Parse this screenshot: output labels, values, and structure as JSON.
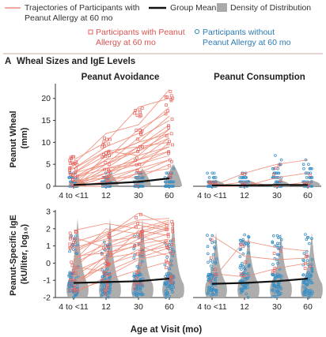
{
  "legend": {
    "trajectories": "Trajectories of Participants with",
    "trajectories_2": "Peanut Allergy at 60 mo",
    "group_mean": "Group Mean",
    "density": "Density of Distribution",
    "with_allergy": "Participants with Peanut",
    "with_allergy_2": "Allergy at 60 mo",
    "without_allergy": "Participants without",
    "without_allergy_2": "Peanut Allergy at 60 mo"
  },
  "section": {
    "letter": "A",
    "title": "Wheal Sizes and IgE Levels"
  },
  "colors": {
    "trajectory": "#ee8c78",
    "mean": "#111111",
    "density": "#a9a9a9",
    "allergic_point": "#e5605a",
    "nonallergic_point": "#3a8fc4"
  },
  "x_label": "Age at Visit (mo)",
  "chart_data": [
    {
      "type": "scatter",
      "title": "Peanut Avoidance",
      "ylabel_lines": [
        "Peanut Wheal",
        "(mm)"
      ],
      "categories": [
        "4 to <11",
        "12",
        "30",
        "60"
      ],
      "ylim": [
        0,
        23
      ],
      "yticks": [
        "0",
        "5",
        "10",
        "15",
        "20"
      ],
      "grid": false,
      "mean": [
        0.3,
        0.6,
        1.0,
        1.8
      ],
      "nonallergic_range": [
        0,
        4
      ],
      "allergic_range": [
        [
          0,
          7
        ],
        [
          0,
          12
        ],
        [
          0,
          18
        ],
        [
          0,
          22
        ]
      ],
      "density_top": [
        2,
        3,
        4,
        5
      ],
      "trajectories": [
        [
          0,
          3,
          5,
          8
        ],
        [
          0,
          1,
          4,
          10
        ],
        [
          2,
          5,
          8,
          12
        ],
        [
          0,
          4,
          9,
          14
        ],
        [
          3,
          7,
          10,
          16
        ],
        [
          0,
          2,
          6,
          9
        ],
        [
          4,
          9,
          12,
          18
        ],
        [
          0,
          0,
          3,
          6
        ],
        [
          1,
          6,
          8,
          11
        ],
        [
          5,
          12,
          14,
          22
        ],
        [
          0,
          3,
          7,
          13
        ],
        [
          2,
          4,
          5,
          7
        ],
        [
          0,
          5,
          11,
          15
        ],
        [
          3,
          8,
          9,
          10
        ],
        [
          0,
          2,
          2,
          5
        ],
        [
          6,
          10,
          18,
          20
        ],
        [
          1,
          3,
          6,
          8
        ],
        [
          0,
          7,
          10,
          12
        ],
        [
          2,
          6,
          13,
          17
        ],
        [
          0,
          1,
          3,
          4
        ],
        [
          4,
          8,
          7,
          9
        ],
        [
          0,
          4,
          6,
          11
        ],
        [
          3,
          5,
          9,
          13
        ],
        [
          1,
          2,
          4,
          6
        ]
      ]
    },
    {
      "type": "scatter",
      "title": "Peanut Consumption",
      "categories": [
        "4 to <11",
        "12",
        "30",
        "60"
      ],
      "ylim": [
        0,
        23
      ],
      "grid": false,
      "mean": [
        0.2,
        0.2,
        0.3,
        0.3
      ],
      "nonallergic_range": [
        0,
        8
      ],
      "allergic_range": [
        [
          0,
          1
        ],
        [
          0,
          3
        ],
        [
          0,
          5
        ],
        [
          0,
          6
        ]
      ],
      "density_top": [
        1.5,
        1.5,
        1.5,
        1.5
      ],
      "trajectories": [
        [
          0,
          3,
          5,
          6
        ],
        [
          0,
          0,
          2,
          3
        ],
        [
          0,
          1,
          0,
          1
        ]
      ]
    },
    {
      "type": "scatter",
      "title": "",
      "ylabel_lines": [
        "Peanut-Specific IgE",
        "(kU/liter, log₁₀)"
      ],
      "categories": [
        "4 to <11",
        "12",
        "30",
        "60"
      ],
      "ylim": [
        -2,
        3
      ],
      "yticks": [
        "-2",
        "-1",
        "0",
        "1",
        "2",
        "3"
      ],
      "grid": false,
      "mean": [
        -1.15,
        -1.1,
        -1.05,
        -0.9
      ],
      "nonallergic_range": [
        -2,
        1.7
      ],
      "allergic_range": [
        [
          -2,
          1.9
        ],
        [
          -1.8,
          2.6
        ],
        [
          -1.5,
          2.9
        ],
        [
          -1.2,
          2.6
        ]
      ],
      "trajectories": [
        [
          -1.5,
          0.5,
          1.4,
          2.0
        ],
        [
          0.2,
          1.1,
          1.8,
          2.4
        ],
        [
          -1.0,
          -0.2,
          0.8,
          1.3
        ],
        [
          1.2,
          1.8,
          2.5,
          2.6
        ],
        [
          -0.5,
          0.3,
          0.6,
          1.0
        ],
        [
          0.6,
          1.6,
          2.9,
          2.2
        ],
        [
          -1.8,
          -0.8,
          0.2,
          0.6
        ],
        [
          0.0,
          0.9,
          1.2,
          1.7
        ],
        [
          1.9,
          2.3,
          2.0,
          2.5
        ],
        [
          -1.2,
          0.1,
          1.9,
          1.6
        ],
        [
          0.4,
          0.6,
          1.0,
          0.4
        ],
        [
          -0.3,
          1.3,
          1.5,
          2.1
        ],
        [
          0.9,
          1.4,
          2.2,
          1.9
        ],
        [
          -1.6,
          -1.0,
          -0.4,
          0.1
        ],
        [
          0.1,
          2.0,
          1.7,
          2.3
        ],
        [
          -0.8,
          0.4,
          1.1,
          1.4
        ],
        [
          1.5,
          0.9,
          1.6,
          1.1
        ],
        [
          -0.2,
          -0.5,
          0.3,
          0.9
        ],
        [
          0.7,
          1.7,
          2.4,
          2.0
        ],
        [
          -1.3,
          -0.1,
          0.5,
          1.2
        ]
      ]
    },
    {
      "type": "scatter",
      "title": "",
      "categories": [
        "4 to <11",
        "12",
        "30",
        "60"
      ],
      "ylim": [
        -2,
        3
      ],
      "grid": false,
      "mean": [
        -1.2,
        -1.15,
        -1.05,
        -0.9
      ],
      "nonallergic_range": [
        -2,
        1.7
      ],
      "allergic_range": [
        [
          -1.2,
          1.6
        ],
        [
          -1.0,
          1.3
        ],
        [
          -0.6,
          0.9
        ],
        [
          -0.5,
          0.7
        ]
      ],
      "trajectories": [
        [
          -1.0,
          1.3,
          0.9,
          0.7
        ],
        [
          1.6,
          0.4,
          0.2,
          0.3
        ],
        [
          -0.6,
          -0.8,
          -0.3,
          0.0
        ]
      ]
    }
  ]
}
